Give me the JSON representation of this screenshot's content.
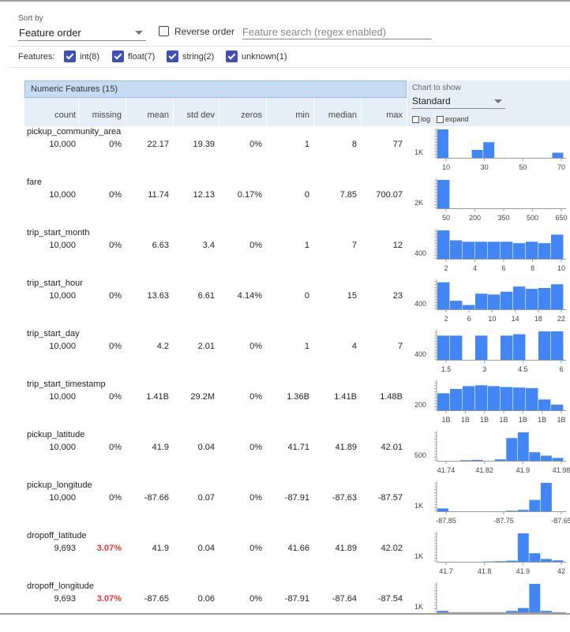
{
  "sort": {
    "label": "Sort by",
    "selected": "Feature order",
    "reverse_label": "Reverse order",
    "search_placeholder": "Feature search (regex enabled)"
  },
  "features": {
    "label": "Features:",
    "toggles": [
      {
        "label": "int(8)",
        "checked": true
      },
      {
        "label": "float(7)",
        "checked": true
      },
      {
        "label": "string(2)",
        "checked": true
      },
      {
        "label": "unknown(1)",
        "checked": true
      }
    ]
  },
  "table": {
    "title": "Numeric Features (15)",
    "columns": [
      "count",
      "missing",
      "mean",
      "std dev",
      "zeros",
      "min",
      "median",
      "max"
    ]
  },
  "chart_controls": {
    "label": "Chart to show",
    "selected": "Standard",
    "log_label": "log",
    "expand_label": "expand"
  },
  "colors": {
    "bar": "#4285f4",
    "warning": "#e53935",
    "header": "#c6dcf2",
    "subheader": "#e6eff8"
  },
  "rows": [
    {
      "name": "pickup_community_area",
      "count": "10,000",
      "missing": "0%",
      "mean": "22.17",
      "std": "19.39",
      "zeros": "0%",
      "min": "1",
      "median": "8",
      "max": "77",
      "y_label": "1K",
      "bars": [
        1.0,
        0,
        0,
        0.28,
        0.55,
        0,
        0,
        0,
        0,
        0,
        0.18
      ],
      "x_ticks": [
        "10",
        "30",
        "50",
        "70"
      ]
    },
    {
      "name": "fare",
      "count": "10,000",
      "missing": "0%",
      "mean": "11.74",
      "std": "12.13",
      "zeros": "0.17%",
      "min": "0",
      "median": "7.85",
      "max": "700.07",
      "y_label": "2K",
      "bars": [
        1.0,
        0,
        0,
        0,
        0,
        0,
        0,
        0,
        0,
        0
      ],
      "x_ticks": [
        "50",
        "200",
        "350",
        "500",
        "650"
      ]
    },
    {
      "name": "trip_start_month",
      "count": "10,000",
      "missing": "0%",
      "mean": "6.63",
      "std": "3.4",
      "zeros": "0%",
      "min": "1",
      "median": "7",
      "max": "12",
      "y_label": "400",
      "bars": [
        1.0,
        0.65,
        0.6,
        0.6,
        0.6,
        0.6,
        0.55,
        0.6,
        0.55,
        0.85
      ],
      "x_ticks": [
        "2",
        "4",
        "6",
        "8",
        "10"
      ]
    },
    {
      "name": "trip_start_hour",
      "count": "10,000",
      "missing": "0%",
      "mean": "13.63",
      "std": "6.61",
      "zeros": "4.14%",
      "min": "0",
      "median": "15",
      "max": "23",
      "y_label": "400",
      "bars": [
        0.95,
        0.3,
        0.15,
        0.55,
        0.52,
        0.62,
        0.8,
        0.72,
        0.75,
        0.88
      ],
      "x_ticks": [
        "2",
        "6",
        "10",
        "14",
        "18",
        "22"
      ]
    },
    {
      "name": "trip_start_day",
      "count": "10,000",
      "missing": "0%",
      "mean": "4.2",
      "std": "2.01",
      "zeros": "0%",
      "min": "1",
      "median": "4",
      "max": "7",
      "y_label": "400",
      "bars": [
        0.85,
        0.85,
        0,
        0.85,
        0,
        0.85,
        0.9,
        0,
        1.0,
        1.0
      ],
      "x_ticks": [
        "1.5",
        "3",
        "4.5",
        "6"
      ]
    },
    {
      "name": "trip_start_timestamp",
      "count": "10,000",
      "missing": "0%",
      "mean": "1.41B",
      "std": "29.2M",
      "zeros": "0%",
      "min": "1.36B",
      "median": "1.41B",
      "max": "1.48B",
      "y_label": "200",
      "bars": [
        0.6,
        0.75,
        0.85,
        0.88,
        0.85,
        0.82,
        0.8,
        0.78,
        0.38,
        0.2
      ],
      "x_ticks": [
        "1B",
        "1B",
        "1B",
        "1B",
        "1B",
        "1B",
        "1B"
      ]
    },
    {
      "name": "pickup_latitude",
      "count": "10,000",
      "missing": "0%",
      "mean": "41.9",
      "std": "0.04",
      "zeros": "0%",
      "min": "41.71",
      "median": "41.89",
      "max": "42.01",
      "y_label": "500",
      "bars": [
        0,
        0,
        0.02,
        0.03,
        0,
        0.05,
        0.8,
        1.0,
        0.3,
        0.18,
        0.1
      ],
      "x_ticks": [
        "41.74",
        "41.82",
        "41.9",
        "41.98"
      ]
    },
    {
      "name": "pickup_longitude",
      "count": "10,000",
      "missing": "0%",
      "mean": "-87.66",
      "std": "0.07",
      "zeros": "0%",
      "min": "-87.91",
      "median": "-87.63",
      "max": "-87.57",
      "y_label": "1K",
      "bars": [
        0.1,
        0,
        0,
        0,
        0,
        0,
        0.02,
        0.05,
        0.4,
        1.0,
        0
      ],
      "x_ticks": [
        "-87.85",
        "-87.75",
        "-87.65"
      ]
    },
    {
      "name": "dropoff_latitude",
      "count": "9,693",
      "missing": "3.07%",
      "mean": "41.9",
      "std": "0.04",
      "zeros": "0%",
      "min": "41.66",
      "median": "41.89",
      "max": "42.02",
      "y_label": "1K",
      "bars": [
        0,
        0,
        0,
        0,
        0.01,
        0.02,
        0.04,
        1.0,
        0.3,
        0.1,
        0.05
      ],
      "x_ticks": [
        "41.7",
        "41.8",
        "41.9",
        "42"
      ]
    },
    {
      "name": "dropoff_longitude",
      "count": "9,693",
      "missing": "3.07%",
      "mean": "-87.65",
      "std": "0.06",
      "zeros": "0%",
      "min": "-87.91",
      "median": "-87.64",
      "max": "-87.54",
      "y_label": "1K",
      "bars": [
        0.05,
        0,
        0,
        0,
        0,
        0,
        0.05,
        0.15,
        1.0,
        0.05,
        0
      ],
      "x_ticks": []
    }
  ]
}
